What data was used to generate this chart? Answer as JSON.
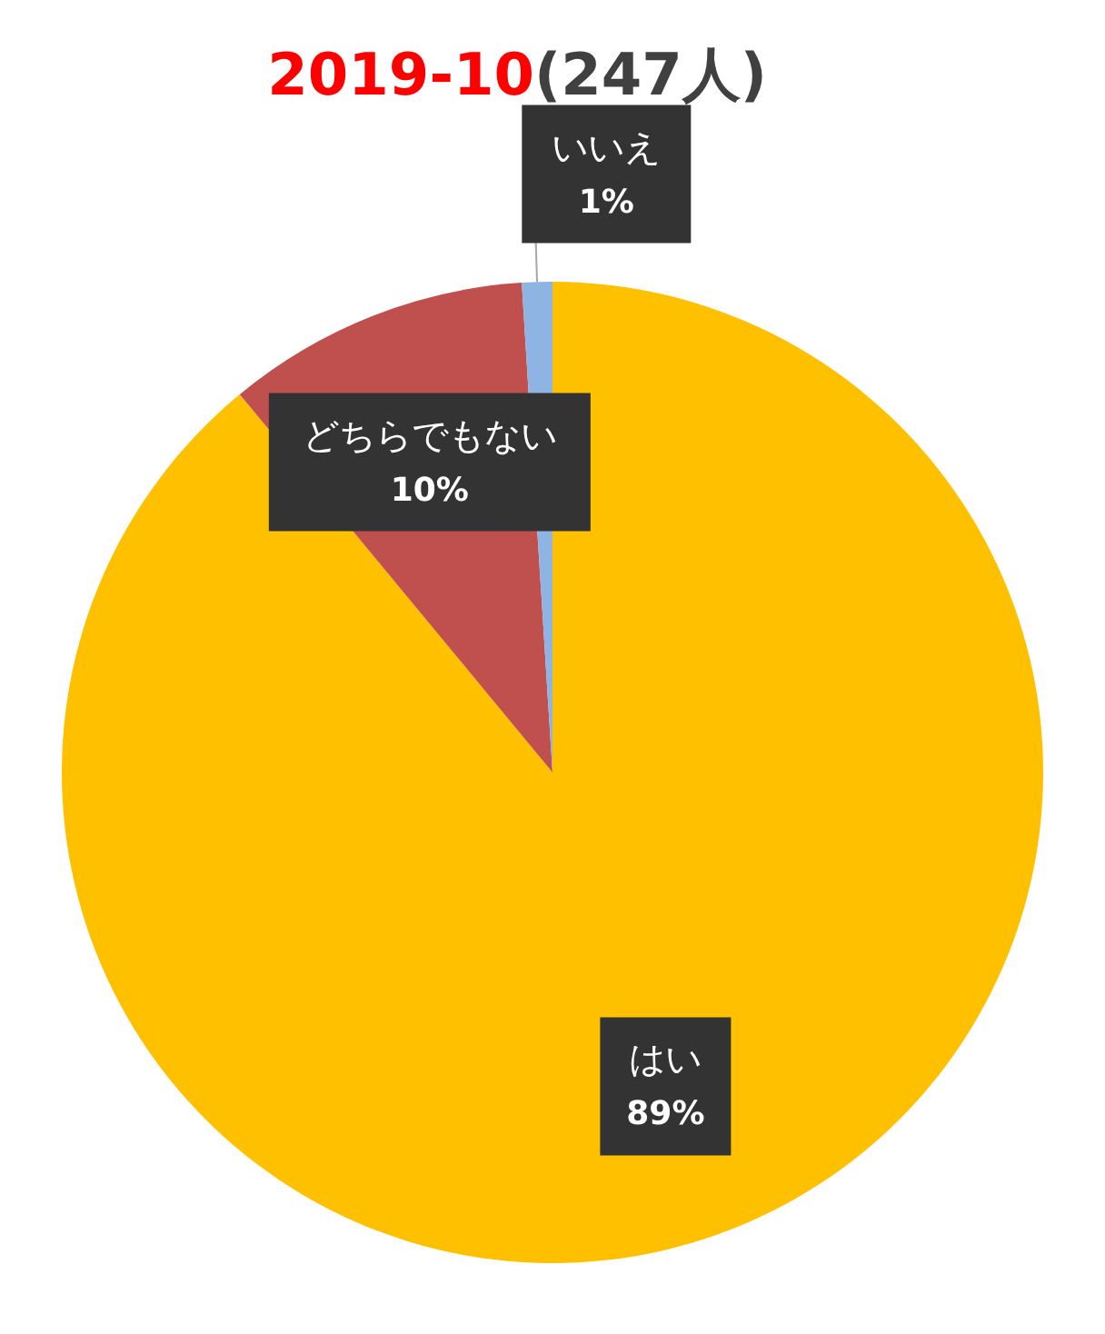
{
  "chart_data": {
    "type": "pie",
    "title": "2019-10(247人)",
    "categories": [
      "はい",
      "どちらでもない",
      "いいえ"
    ],
    "values": [
      89,
      10,
      1
    ],
    "colors": [
      "#ffc000",
      "#c0504d",
      "#8db4e2"
    ],
    "value_labels": [
      "89%",
      "10%",
      "1%"
    ],
    "legend": false
  }
}
